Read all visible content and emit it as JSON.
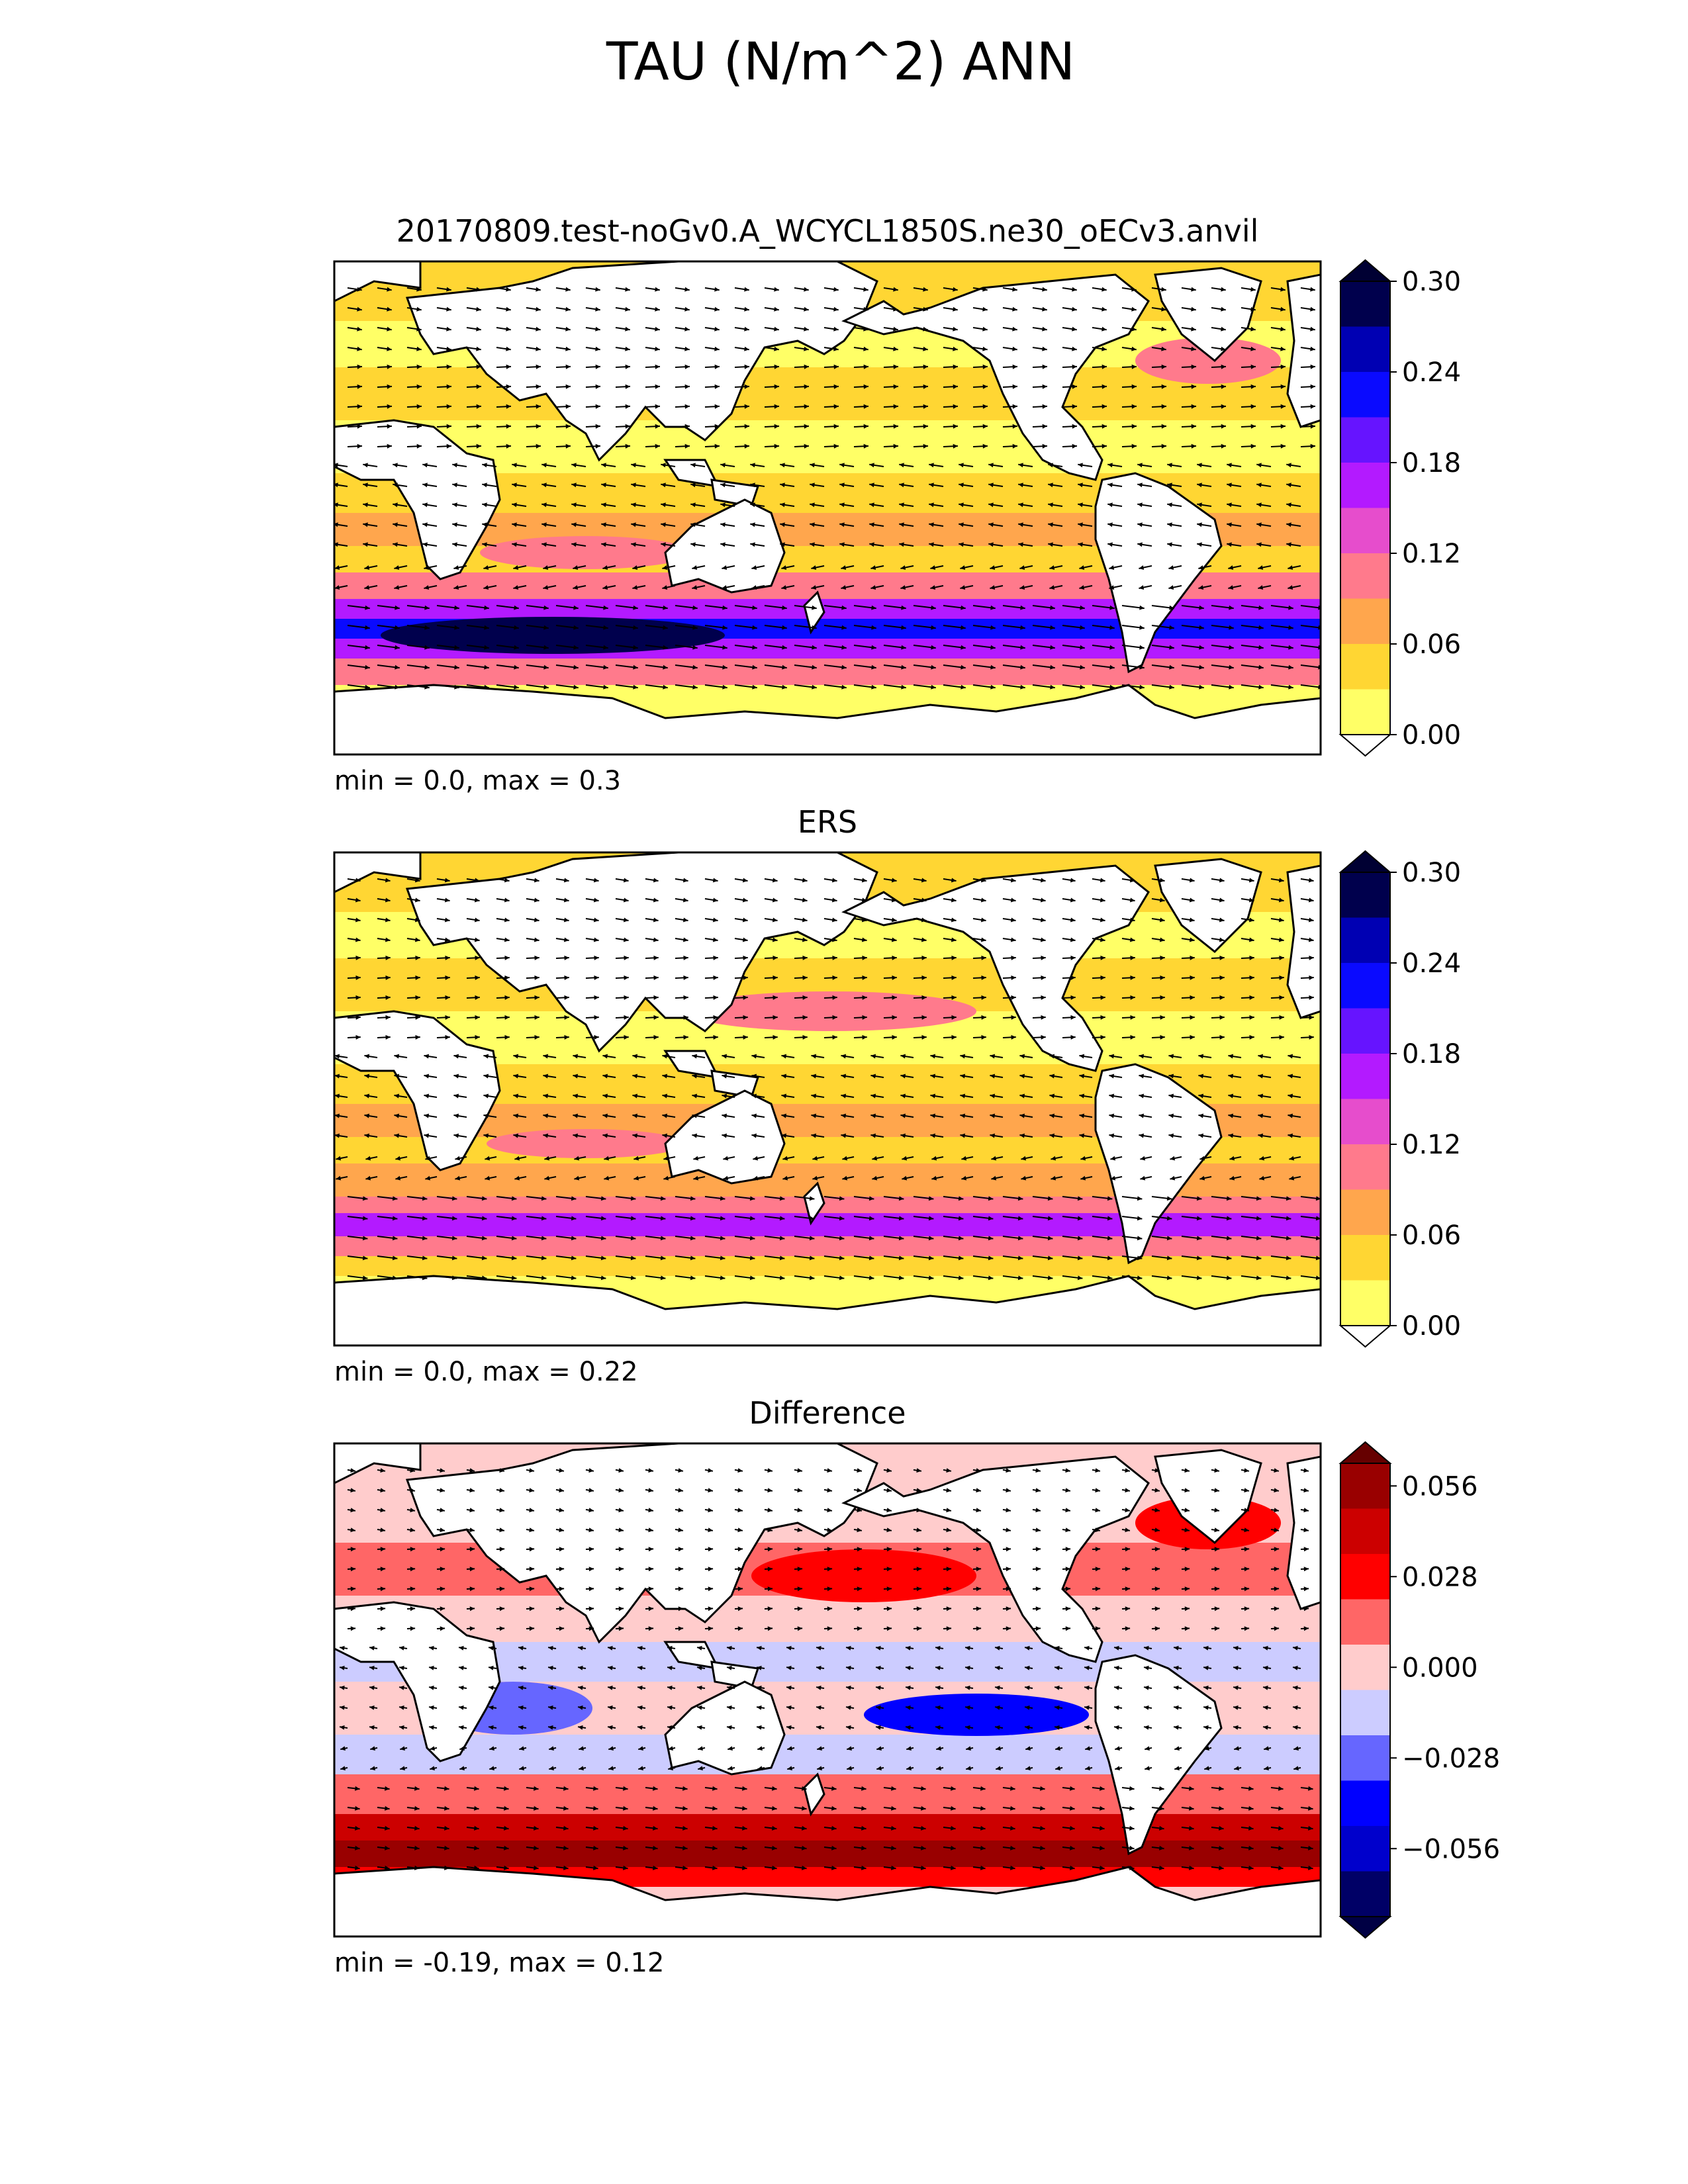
{
  "figure": {
    "title": "TAU (N/m^2) ANN"
  },
  "panels": [
    {
      "id": "test",
      "title": "20170809.test-noGv0.A_WCYCL1850S.ne30_oECv3.anvil",
      "stats": "min = 0.0, max = 0.3",
      "colorbar": {
        "ticks": [
          "0.00",
          "0.06",
          "0.12",
          "0.18",
          "0.24",
          "0.30"
        ],
        "colors": [
          "#ffff66",
          "#ffd633",
          "#ffa64d",
          "#ff7a8c",
          "#e64dcc",
          "#b31aff",
          "#6614ff",
          "#0a0aff",
          "#0000b3",
          "#00004d"
        ],
        "under": "#ffffff",
        "over": "#000033"
      }
    },
    {
      "id": "obs",
      "title": "ERS",
      "stats": "min = 0.0, max = 0.22",
      "colorbar": {
        "ticks": [
          "0.00",
          "0.06",
          "0.12",
          "0.18",
          "0.24",
          "0.30"
        ],
        "colors": [
          "#ffff66",
          "#ffd633",
          "#ffa64d",
          "#ff7a8c",
          "#e64dcc",
          "#b31aff",
          "#6614ff",
          "#0a0aff",
          "#0000b3",
          "#00004d"
        ],
        "under": "#ffffff",
        "over": "#000033"
      }
    },
    {
      "id": "diff",
      "title": "Difference",
      "stats": "min = -0.19, max = 0.12",
      "colorbar": {
        "ticks": [
          "−0.056",
          "−0.028",
          "0.000",
          "0.028",
          "0.056"
        ],
        "colors": [
          "#000066",
          "#0000cc",
          "#0000ff",
          "#6666ff",
          "#ccccff",
          "#ffcccc",
          "#ff6666",
          "#ff0000",
          "#cc0000",
          "#990000"
        ],
        "under": "#000044",
        "over": "#660000"
      }
    }
  ],
  "colors": {
    "land": "#ffffff",
    "coastline": "#000000",
    "arrow": "#000000"
  }
}
